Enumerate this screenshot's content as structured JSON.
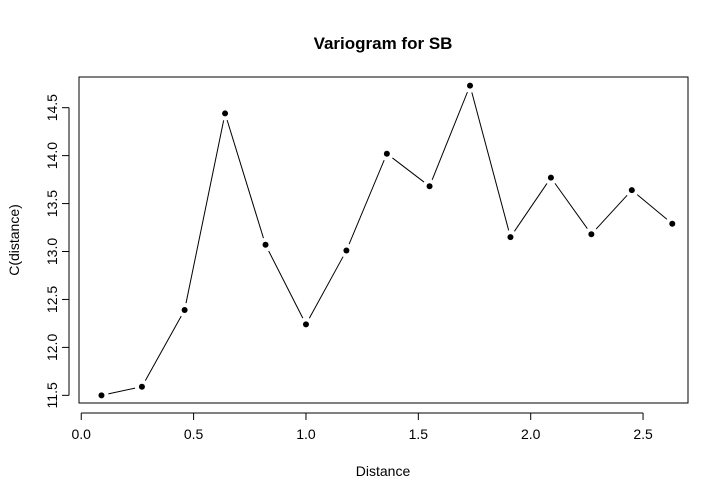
{
  "chart_data": {
    "type": "line",
    "title": "Variogram for SB",
    "xlabel": "Distance",
    "ylabel": "C(distance)",
    "xlim": [
      -0.01,
      2.7
    ],
    "ylim": [
      11.42,
      14.82
    ],
    "xticks": [
      0.0,
      0.5,
      1.0,
      1.5,
      2.0,
      2.5
    ],
    "xtick_labels": [
      "0.0",
      "0.5",
      "1.0",
      "1.5",
      "2.0",
      "2.5"
    ],
    "yticks": [
      11.5,
      12.0,
      12.5,
      13.0,
      13.5,
      14.0,
      14.5
    ],
    "ytick_labels": [
      "11.5",
      "12.0",
      "12.5",
      "13.0",
      "13.5",
      "14.0",
      "14.5"
    ],
    "grid": false,
    "series": [
      {
        "x": [
          0.09,
          0.27,
          0.46,
          0.64,
          0.82,
          1.0,
          1.18,
          1.36,
          1.55,
          1.73,
          1.91,
          2.09,
          2.27,
          2.45,
          2.63
        ],
        "y": [
          11.5,
          11.59,
          12.39,
          14.44,
          13.07,
          12.24,
          13.01,
          14.02,
          13.68,
          14.73,
          13.15,
          13.77,
          13.18,
          13.64,
          13.29
        ]
      }
    ]
  }
}
